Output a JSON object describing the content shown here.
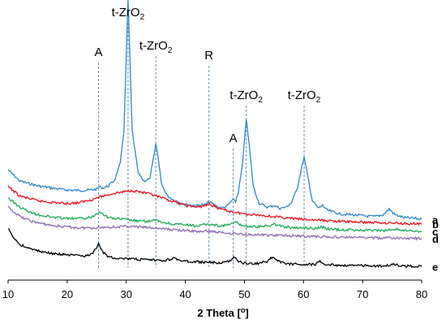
{
  "chart_data": {
    "type": "line",
    "title": "",
    "xlabel": "2 Theta [",
    "xlabel_unit": "o",
    "xlabel_tail": "]",
    "ylabel": "",
    "xlim": [
      10,
      80
    ],
    "x_ticks": [
      10,
      20,
      30,
      40,
      50,
      60,
      70,
      80
    ],
    "grid": false,
    "y_axis_shown": false,
    "series": [
      {
        "name": "a",
        "color": "#2E86C8",
        "end_label": "a",
        "points": [
          [
            10,
            1.18
          ],
          [
            12,
            1.06
          ],
          [
            15,
            1.01
          ],
          [
            18,
            0.98
          ],
          [
            20,
            0.965
          ],
          [
            22,
            0.96
          ],
          [
            24,
            0.965
          ],
          [
            25,
            0.975
          ],
          [
            25.5,
            1.0
          ],
          [
            26,
            0.985
          ],
          [
            27,
            1.01
          ],
          [
            28,
            1.07
          ],
          [
            29,
            1.25
          ],
          [
            29.6,
            1.6
          ],
          [
            30.0,
            2.4
          ],
          [
            30.3,
            3.0
          ],
          [
            30.6,
            2.4
          ],
          [
            31.0,
            1.6
          ],
          [
            32,
            1.15
          ],
          [
            33,
            1.05
          ],
          [
            34,
            1.1
          ],
          [
            34.6,
            1.3
          ],
          [
            35.0,
            1.45
          ],
          [
            35.4,
            1.3
          ],
          [
            36,
            1.02
          ],
          [
            37,
            0.9
          ],
          [
            38,
            0.86
          ],
          [
            40,
            0.81
          ],
          [
            42,
            0.8
          ],
          [
            43.5,
            0.81
          ],
          [
            44,
            0.84
          ],
          [
            44.5,
            0.82
          ],
          [
            46,
            0.77
          ],
          [
            47,
            0.79
          ],
          [
            48,
            0.86
          ],
          [
            48.5,
            0.84
          ],
          [
            49,
            0.95
          ],
          [
            49.7,
            1.25
          ],
          [
            50.3,
            1.73
          ],
          [
            50.8,
            1.45
          ],
          [
            51.5,
            1.0
          ],
          [
            52.5,
            0.82
          ],
          [
            54,
            0.78
          ],
          [
            55,
            0.8
          ],
          [
            56,
            0.77
          ],
          [
            57,
            0.78
          ],
          [
            58,
            0.83
          ],
          [
            59,
            1.0
          ],
          [
            59.6,
            1.18
          ],
          [
            60.1,
            1.32
          ],
          [
            60.6,
            1.15
          ],
          [
            61.5,
            0.85
          ],
          [
            62.5,
            0.77
          ],
          [
            63.2,
            0.8
          ],
          [
            64,
            0.75
          ],
          [
            66,
            0.71
          ],
          [
            68,
            0.7
          ],
          [
            70,
            0.69
          ],
          [
            72,
            0.68
          ],
          [
            73.5,
            0.7
          ],
          [
            74.5,
            0.76
          ],
          [
            75.5,
            0.7
          ],
          [
            77,
            0.67
          ],
          [
            79,
            0.66
          ],
          [
            80,
            0.65
          ]
        ]
      },
      {
        "name": "b",
        "color": "#E8141B",
        "end_label": "b",
        "points": [
          [
            10,
            1.0
          ],
          [
            12,
            0.9
          ],
          [
            15,
            0.85
          ],
          [
            18,
            0.83
          ],
          [
            20,
            0.82
          ],
          [
            22,
            0.83
          ],
          [
            24,
            0.86
          ],
          [
            26,
            0.9
          ],
          [
            28,
            0.93
          ],
          [
            30,
            0.95
          ],
          [
            31,
            0.96
          ],
          [
            32,
            0.95
          ],
          [
            34,
            0.92
          ],
          [
            36,
            0.88
          ],
          [
            38,
            0.84
          ],
          [
            40,
            0.8
          ],
          [
            42,
            0.78
          ],
          [
            43.5,
            0.8
          ],
          [
            44,
            0.82
          ],
          [
            44.5,
            0.8
          ],
          [
            46,
            0.76
          ],
          [
            48,
            0.73
          ],
          [
            50,
            0.71
          ],
          [
            52,
            0.7
          ],
          [
            55,
            0.68
          ],
          [
            58,
            0.66
          ],
          [
            60,
            0.65
          ],
          [
            63,
            0.64
          ],
          [
            66,
            0.63
          ],
          [
            70,
            0.62
          ],
          [
            73,
            0.615
          ],
          [
            76,
            0.61
          ],
          [
            80,
            0.6
          ]
        ]
      },
      {
        "name": "c",
        "color": "#1AAA55",
        "end_label": "c",
        "points": [
          [
            10,
            0.88
          ],
          [
            12,
            0.78
          ],
          [
            14,
            0.72
          ],
          [
            16,
            0.69
          ],
          [
            18,
            0.67
          ],
          [
            20,
            0.66
          ],
          [
            22,
            0.66
          ],
          [
            24,
            0.67
          ],
          [
            25,
            0.71
          ],
          [
            25.5,
            0.74
          ],
          [
            26,
            0.71
          ],
          [
            27,
            0.67
          ],
          [
            28,
            0.66
          ],
          [
            30,
            0.65
          ],
          [
            32,
            0.63
          ],
          [
            34,
            0.63
          ],
          [
            35,
            0.64
          ],
          [
            36,
            0.62
          ],
          [
            38,
            0.6
          ],
          [
            40,
            0.59
          ],
          [
            42,
            0.58
          ],
          [
            44,
            0.6
          ],
          [
            46,
            0.58
          ],
          [
            48,
            0.6
          ],
          [
            48.5,
            0.63
          ],
          [
            49,
            0.6
          ],
          [
            50,
            0.58
          ],
          [
            52,
            0.57
          ],
          [
            54,
            0.58
          ],
          [
            55,
            0.6
          ],
          [
            56,
            0.58
          ],
          [
            58,
            0.56
          ],
          [
            60,
            0.56
          ],
          [
            62,
            0.555
          ],
          [
            63,
            0.57
          ],
          [
            64,
            0.55
          ],
          [
            66,
            0.54
          ],
          [
            70,
            0.535
          ],
          [
            74,
            0.53
          ],
          [
            75.5,
            0.55
          ],
          [
            77,
            0.53
          ],
          [
            80,
            0.52
          ]
        ]
      },
      {
        "name": "d",
        "color": "#8E6BB7",
        "end_label": "d",
        "points": [
          [
            10,
            0.78
          ],
          [
            12,
            0.68
          ],
          [
            14,
            0.63
          ],
          [
            16,
            0.6
          ],
          [
            18,
            0.58
          ],
          [
            20,
            0.57
          ],
          [
            22,
            0.56
          ],
          [
            24,
            0.56
          ],
          [
            26,
            0.565
          ],
          [
            28,
            0.57
          ],
          [
            30,
            0.575
          ],
          [
            32,
            0.57
          ],
          [
            34,
            0.56
          ],
          [
            36,
            0.55
          ],
          [
            38,
            0.54
          ],
          [
            40,
            0.53
          ],
          [
            42,
            0.52
          ],
          [
            44,
            0.525
          ],
          [
            46,
            0.51
          ],
          [
            48,
            0.5
          ],
          [
            50,
            0.49
          ],
          [
            52,
            0.485
          ],
          [
            55,
            0.48
          ],
          [
            58,
            0.475
          ],
          [
            60,
            0.47
          ],
          [
            63,
            0.465
          ],
          [
            66,
            0.46
          ],
          [
            70,
            0.455
          ],
          [
            75,
            0.45
          ],
          [
            80,
            0.445
          ]
        ]
      },
      {
        "name": "e",
        "color": "#000000",
        "end_label": "e",
        "points": [
          [
            10,
            0.55
          ],
          [
            11,
            0.45
          ],
          [
            12,
            0.38
          ],
          [
            14,
            0.33
          ],
          [
            16,
            0.3
          ],
          [
            18,
            0.28
          ],
          [
            20,
            0.27
          ],
          [
            22,
            0.26
          ],
          [
            23.5,
            0.26
          ],
          [
            24.5,
            0.3
          ],
          [
            25.3,
            0.39
          ],
          [
            26,
            0.3
          ],
          [
            27,
            0.25
          ],
          [
            28,
            0.24
          ],
          [
            30,
            0.23
          ],
          [
            32,
            0.22
          ],
          [
            34,
            0.215
          ],
          [
            36,
            0.21
          ],
          [
            37.5,
            0.22
          ],
          [
            38,
            0.25
          ],
          [
            38.6,
            0.22
          ],
          [
            40,
            0.2
          ],
          [
            42,
            0.195
          ],
          [
            44,
            0.19
          ],
          [
            46,
            0.185
          ],
          [
            47.5,
            0.2
          ],
          [
            48.2,
            0.26
          ],
          [
            49,
            0.2
          ],
          [
            50,
            0.18
          ],
          [
            52,
            0.175
          ],
          [
            53.8,
            0.2
          ],
          [
            54.8,
            0.25
          ],
          [
            55.8,
            0.2
          ],
          [
            57,
            0.175
          ],
          [
            60,
            0.17
          ],
          [
            62,
            0.17
          ],
          [
            62.8,
            0.2
          ],
          [
            63.5,
            0.17
          ],
          [
            66,
            0.16
          ],
          [
            70,
            0.155
          ],
          [
            74,
            0.15
          ],
          [
            75.2,
            0.18
          ],
          [
            76,
            0.155
          ],
          [
            78,
            0.15
          ],
          [
            80,
            0.145
          ]
        ]
      }
    ],
    "annotations": [
      {
        "main": "A",
        "sub": "",
        "x": 25.3
      },
      {
        "main": "t-ZrO",
        "sub": "2",
        "x": 30.3
      },
      {
        "main": "t-ZrO",
        "sub": "2",
        "x": 35.0
      },
      {
        "main": "R",
        "sub": "",
        "x": 44.0
      },
      {
        "main": "A",
        "sub": "",
        "x": 48.1
      },
      {
        "main": "t-ZrO",
        "sub": "2",
        "x": 50.3
      },
      {
        "main": "t-ZrO",
        "sub": "2",
        "x": 60.1
      }
    ]
  }
}
